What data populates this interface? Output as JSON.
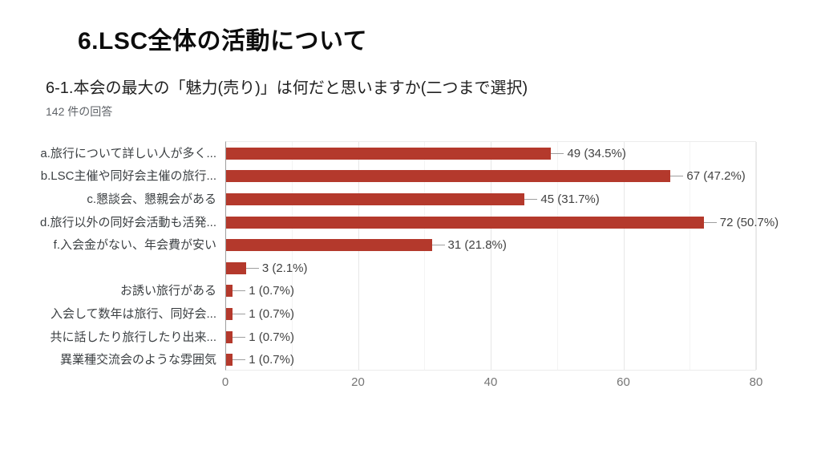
{
  "header": {
    "title": "6.LSC全体の活動について"
  },
  "question": {
    "text": "6-1.本会の最大の「魅力(売り)」は何だと思いますか(二つまで選択)",
    "responses": "142 件の回答"
  },
  "colors": {
    "bar": "#b4392c",
    "axis_line": "#9e9e9e",
    "grid_major": "#e7e7e7",
    "grid_minor": "#f4f4f4",
    "value_label": "#424242",
    "category_label": "#3c4043",
    "tick_label": "#757575"
  },
  "chart_data": {
    "type": "bar",
    "orientation": "horizontal",
    "title": "6-1.本会の最大の「魅力(売り)」は何だと思いますか(二つまで選択)",
    "subtitle": "142 件の回答",
    "categories": [
      "a.旅行について詳しい人が多く...",
      "b.LSC主催や同好会主催の旅行...",
      "c.懇談会、懇親会がある",
      "d.旅行以外の同好会活動も活発...",
      "f.入会金がない、年会費が安い",
      "",
      "お誘い旅行がある",
      "入会して数年は旅行、同好会...",
      "共に話したり旅行したり出来...",
      "異業種交流会のような雰囲気"
    ],
    "values": [
      49,
      67,
      45,
      72,
      31,
      3,
      1,
      1,
      1,
      1
    ],
    "value_labels": [
      "49 (34.5%)",
      "67 (47.2%)",
      "45 (31.7%)",
      "72 (50.7%)",
      "31 (21.8%)",
      "3 (2.1%)",
      "1 (0.7%)",
      "1 (0.7%)",
      "1 (0.7%)",
      "1 (0.7%)"
    ],
    "xlabel": "",
    "ylabel": "",
    "xlim": [
      0,
      80
    ],
    "xticks": [
      0,
      20,
      40,
      60,
      80
    ],
    "grid": true,
    "grid_minor_step": 10,
    "legend": false
  }
}
